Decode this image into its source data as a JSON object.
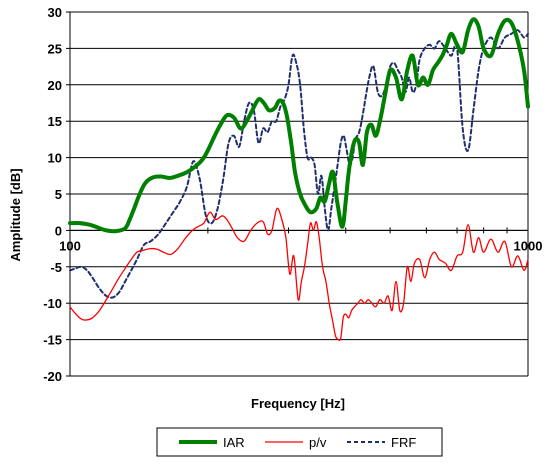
{
  "chart_data": {
    "type": "line",
    "xlabel": "Frequency [Hz]",
    "ylabel": "Amplitude [dB]",
    "xscale": "log",
    "xlim": [
      100,
      1000
    ],
    "ylim": [
      -20,
      30
    ],
    "x_tick_labels": [
      "100",
      "1000"
    ],
    "y_ticks": [
      -20,
      -15,
      -10,
      -5,
      0,
      5,
      10,
      15,
      20,
      25,
      30
    ],
    "grid": "horizontal",
    "legend_position": "bottom",
    "series": [
      {
        "name": "IAR",
        "color": "#008000",
        "style": "solid-thick",
        "x": [
          100,
          105,
          110,
          115,
          120,
          126,
          132,
          135,
          138,
          142,
          146,
          152,
          158,
          165,
          172,
          180,
          188,
          195,
          200,
          207,
          213,
          220,
          228,
          236,
          244,
          250,
          258,
          265,
          272,
          280,
          286,
          292,
          298,
          304,
          310,
          318,
          326,
          335,
          345,
          352,
          360,
          368,
          375,
          383,
          393,
          400,
          406,
          413,
          420,
          428,
          436,
          445,
          455,
          465,
          475,
          487,
          500,
          515,
          530,
          545,
          560,
          575,
          590,
          605,
          620,
          635,
          650,
          665,
          680,
          700,
          720,
          740,
          760,
          780,
          800,
          830,
          860,
          890,
          920,
          950,
          980,
          1000
        ],
        "y": [
          1,
          1,
          0.8,
          0.4,
          0,
          -0.1,
          0.3,
          1.5,
          3,
          5,
          6.5,
          7.3,
          7.4,
          7.2,
          7.5,
          8,
          8.8,
          9.8,
          11,
          13,
          14.5,
          15.8,
          15.5,
          14,
          15.2,
          16.5,
          18,
          17.5,
          16.5,
          16.8,
          17.8,
          17.5,
          15.5,
          12,
          8,
          5,
          3.5,
          2.5,
          3,
          4.5,
          4,
          6.5,
          8,
          4,
          0.5,
          4,
          8,
          11,
          12.5,
          12,
          9,
          13.5,
          14.5,
          13,
          15,
          18.5,
          22,
          21,
          18,
          22,
          24,
          20,
          21,
          20,
          22,
          23,
          24,
          25.5,
          27,
          25.5,
          24.5,
          27.5,
          29,
          28,
          25,
          24,
          27,
          28.8,
          28.5,
          26,
          22,
          17
        ]
      },
      {
        "name": "p/v",
        "color": "#ff0000",
        "style": "solid-thin",
        "x": [
          100,
          103,
          106,
          109,
          112,
          116,
          120,
          124,
          128,
          132,
          136,
          140,
          145,
          150,
          155,
          160,
          166,
          172,
          178,
          185,
          190,
          196,
          202,
          208,
          215,
          220,
          225,
          232,
          240,
          248,
          256,
          264,
          270,
          276,
          283,
          290,
          296,
          302,
          308,
          315,
          320,
          325,
          330,
          335,
          340,
          345,
          350,
          356,
          362,
          368,
          372,
          376,
          380,
          385,
          390,
          395,
          400,
          406,
          412,
          418,
          425,
          432,
          440,
          448,
          456,
          465,
          475,
          485,
          495,
          505,
          515,
          525,
          535,
          545,
          555,
          565,
          580,
          595,
          610,
          625,
          640,
          660,
          680,
          700,
          720,
          740,
          760,
          780,
          800,
          830,
          860,
          890,
          920,
          950,
          980,
          1000
        ],
        "y": [
          -10.5,
          -11.5,
          -12.2,
          -12.3,
          -12,
          -11,
          -9.5,
          -8,
          -6.5,
          -5.2,
          -4,
          -3,
          -2.7,
          -2.5,
          -2.6,
          -3,
          -3.3,
          -2.5,
          -1.2,
          0,
          0.5,
          1,
          2.5,
          1.5,
          2,
          1.5,
          0.5,
          -1,
          -1.5,
          0,
          1,
          1.2,
          -0.5,
          0,
          3,
          1.5,
          -1,
          -6,
          -3.5,
          -9.5,
          -7,
          -5,
          -2,
          1,
          0,
          1.2,
          -1,
          -5,
          -7,
          -10,
          -11.5,
          -13,
          -14.5,
          -15,
          -14.8,
          -12,
          -11.5,
          -12,
          -11,
          -10.5,
          -10,
          -9.5,
          -10,
          -9.5,
          -10,
          -10.5,
          -9.5,
          -10,
          -9,
          -11,
          -7,
          -11,
          -10,
          -5,
          -7,
          -4.5,
          -4,
          -6.5,
          -4,
          -3,
          -4,
          -4.5,
          -5.5,
          -3.5,
          -3,
          0.8,
          -3,
          -1,
          -3,
          -1.2,
          -3,
          -1.5,
          -5,
          -3.5,
          -5.5,
          -4
        ]
      },
      {
        "name": "FRF",
        "color": "#1f2f6e",
        "style": "dashed",
        "x": [
          100,
          103,
          106,
          109,
          112,
          116,
          120,
          124,
          128,
          132,
          136,
          140,
          145,
          150,
          156,
          162,
          168,
          174,
          180,
          186,
          192,
          198,
          204,
          210,
          216,
          222,
          228,
          234,
          240,
          246,
          252,
          258,
          264,
          270,
          276,
          282,
          288,
          294,
          300,
          306,
          312,
          318,
          324,
          330,
          336,
          342,
          348,
          354,
          360,
          366,
          372,
          378,
          384,
          390,
          396,
          402,
          408,
          414,
          420,
          428,
          436,
          444,
          452,
          460,
          470,
          480,
          490,
          500,
          510,
          520,
          530,
          540,
          550,
          560,
          570,
          580,
          595,
          610,
          625,
          640,
          660,
          680,
          700,
          720,
          740,
          760,
          780,
          800,
          830,
          860,
          890,
          920,
          950,
          980,
          1000
        ],
        "y": [
          -5.5,
          -5.2,
          -5,
          -5.5,
          -6.5,
          -8,
          -9,
          -9.2,
          -8.5,
          -7,
          -5.5,
          -4,
          -2,
          -1.5,
          -0.5,
          1,
          2.5,
          4,
          6,
          9.5,
          7,
          2,
          1,
          3,
          7,
          12,
          13,
          11.5,
          15,
          17.5,
          16.5,
          12,
          14,
          13.5,
          15,
          15,
          17,
          18,
          20,
          24,
          23,
          20,
          14,
          10,
          10,
          9,
          5,
          7.5,
          3,
          0,
          3,
          6,
          9,
          12,
          13,
          11,
          9,
          10,
          12.5,
          13.5,
          16,
          19,
          21.5,
          22.5,
          19,
          18.5,
          20,
          22.5,
          23,
          22,
          21,
          19,
          21,
          19,
          20,
          23.5,
          25,
          25.5,
          25,
          26,
          25,
          24,
          25,
          14,
          11,
          16.5,
          22,
          25,
          26.5,
          25,
          26.5,
          27,
          27.5,
          26.5,
          27
        ]
      }
    ]
  }
}
